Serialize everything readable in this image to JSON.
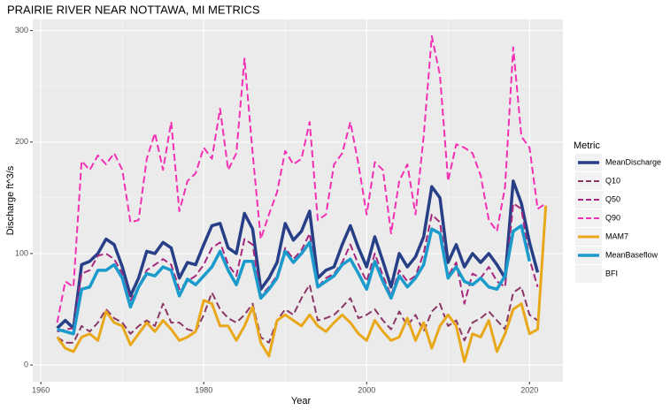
{
  "chart_data": {
    "type": "line",
    "title": "PRAIRIE RIVER NEAR NOTTAWA, MI  METRICS",
    "x_label": "Year",
    "y_label": "Discharge ft^3/s",
    "legend_title": "Metric",
    "x": [
      1962,
      1963,
      1964,
      1965,
      1966,
      1967,
      1968,
      1969,
      1970,
      1971,
      1972,
      1973,
      1974,
      1975,
      1976,
      1977,
      1978,
      1979,
      1980,
      1981,
      1982,
      1983,
      1984,
      1985,
      1986,
      1987,
      1988,
      1989,
      1990,
      1991,
      1992,
      1993,
      1994,
      1995,
      1996,
      1997,
      1998,
      1999,
      2000,
      2001,
      2002,
      2003,
      2004,
      2005,
      2006,
      2007,
      2008,
      2009,
      2010,
      2011,
      2012,
      2013,
      2014,
      2015,
      2016,
      2017,
      2018,
      2019,
      2020,
      2021,
      2022
    ],
    "series": [
      {
        "name": "MeanDischarge",
        "color": "#273f87",
        "dash": false,
        "width": 3.5,
        "values": [
          33,
          40,
          33,
          90,
          93,
          100,
          113,
          108,
          88,
          62,
          78,
          102,
          100,
          110,
          105,
          78,
          92,
          90,
          108,
          125,
          127,
          105,
          100,
          136,
          122,
          68,
          78,
          92,
          127,
          112,
          120,
          138,
          78,
          85,
          88,
          108,
          125,
          105,
          88,
          115,
          93,
          70,
          100,
          88,
          97,
          115,
          160,
          150,
          92,
          108,
          88,
          100,
          92,
          100,
          90,
          78,
          165,
          145,
          110,
          83,
          null
        ]
      },
      {
        "name": "Q10",
        "color": "#8b3766",
        "dash": true,
        "width": 2,
        "values": [
          25,
          20,
          20,
          35,
          30,
          38,
          50,
          42,
          38,
          28,
          35,
          40,
          35,
          55,
          38,
          38,
          32,
          30,
          45,
          65,
          50,
          42,
          38,
          45,
          55,
          25,
          20,
          40,
          50,
          45,
          60,
          72,
          40,
          42,
          45,
          52,
          60,
          42,
          45,
          50,
          40,
          32,
          48,
          35,
          45,
          30,
          48,
          55,
          35,
          40,
          22,
          38,
          42,
          48,
          40,
          32,
          65,
          70,
          45,
          40,
          null
        ]
      },
      {
        "name": "Q50",
        "color": "#a8267f",
        "dash": true,
        "width": 2,
        "values": [
          30,
          32,
          33,
          82,
          85,
          98,
          100,
          95,
          82,
          58,
          70,
          85,
          90,
          95,
          90,
          68,
          75,
          80,
          90,
          105,
          110,
          90,
          80,
          113,
          108,
          62,
          70,
          80,
          105,
          95,
          103,
          118,
          70,
          78,
          82,
          92,
          108,
          90,
          75,
          100,
          80,
          62,
          85,
          75,
          80,
          100,
          135,
          128,
          80,
          92,
          55,
          82,
          78,
          88,
          75,
          70,
          145,
          140,
          95,
          70,
          null
        ]
      },
      {
        "name": "Q90",
        "color": "#f230b4",
        "dash": true,
        "width": 2,
        "values": [
          38,
          75,
          70,
          183,
          175,
          188,
          180,
          190,
          175,
          128,
          130,
          185,
          208,
          175,
          218,
          138,
          165,
          172,
          195,
          185,
          230,
          175,
          190,
          275,
          190,
          113,
          135,
          155,
          192,
          180,
          185,
          218,
          130,
          135,
          180,
          190,
          218,
          180,
          135,
          182,
          175,
          118,
          165,
          180,
          135,
          205,
          295,
          260,
          165,
          198,
          195,
          190,
          170,
          130,
          120,
          160,
          285,
          205,
          195,
          140,
          145
        ]
      },
      {
        "name": "MAM7",
        "color": "#e8a81a",
        "dash": false,
        "width": 3,
        "values": [
          25,
          15,
          12,
          25,
          28,
          22,
          48,
          38,
          35,
          18,
          28,
          38,
          30,
          40,
          32,
          22,
          25,
          30,
          58,
          55,
          35,
          35,
          22,
          35,
          52,
          20,
          8,
          40,
          45,
          40,
          35,
          45,
          35,
          30,
          38,
          45,
          38,
          28,
          22,
          40,
          30,
          22,
          25,
          42,
          22,
          38,
          15,
          35,
          45,
          35,
          3,
          28,
          25,
          40,
          12,
          28,
          50,
          55,
          28,
          32,
          143
        ]
      },
      {
        "name": "MeanBaseflow",
        "color": "#1a9bcb",
        "dash": false,
        "width": 3.5,
        "values": [
          32,
          30,
          28,
          68,
          70,
          85,
          85,
          90,
          78,
          52,
          70,
          82,
          80,
          88,
          85,
          62,
          77,
          72,
          80,
          88,
          102,
          85,
          72,
          93,
          93,
          60,
          68,
          78,
          102,
          92,
          100,
          110,
          70,
          75,
          80,
          90,
          95,
          82,
          68,
          93,
          75,
          60,
          80,
          70,
          78,
          90,
          122,
          118,
          78,
          88,
          75,
          72,
          78,
          70,
          68,
          80,
          120,
          125,
          93,
          null,
          null
        ]
      },
      {
        "name": "BFI",
        "color": "#f2f2f2",
        "dash": false,
        "width": 3,
        "values": [
          null,
          null,
          null,
          null,
          null,
          null,
          null,
          null,
          null,
          null,
          null,
          null,
          null,
          null,
          null,
          null,
          null,
          null,
          null,
          null,
          null,
          null,
          null,
          null,
          null,
          null,
          null,
          null,
          null,
          null,
          null,
          null,
          null,
          null,
          null,
          null,
          null,
          null,
          null,
          null,
          null,
          null,
          null,
          null,
          null,
          null,
          null,
          null,
          null,
          null,
          null,
          null,
          null,
          null,
          null,
          null,
          null,
          null,
          null,
          null,
          null
        ]
      }
    ],
    "xlim": [
      1959,
      2024.1
    ],
    "ylim": [
      -15,
      310
    ],
    "xticks": [
      1960,
      1980,
      2000,
      2020
    ],
    "yticks": [
      0,
      100,
      200,
      300
    ],
    "grid": true,
    "legend": "right"
  }
}
